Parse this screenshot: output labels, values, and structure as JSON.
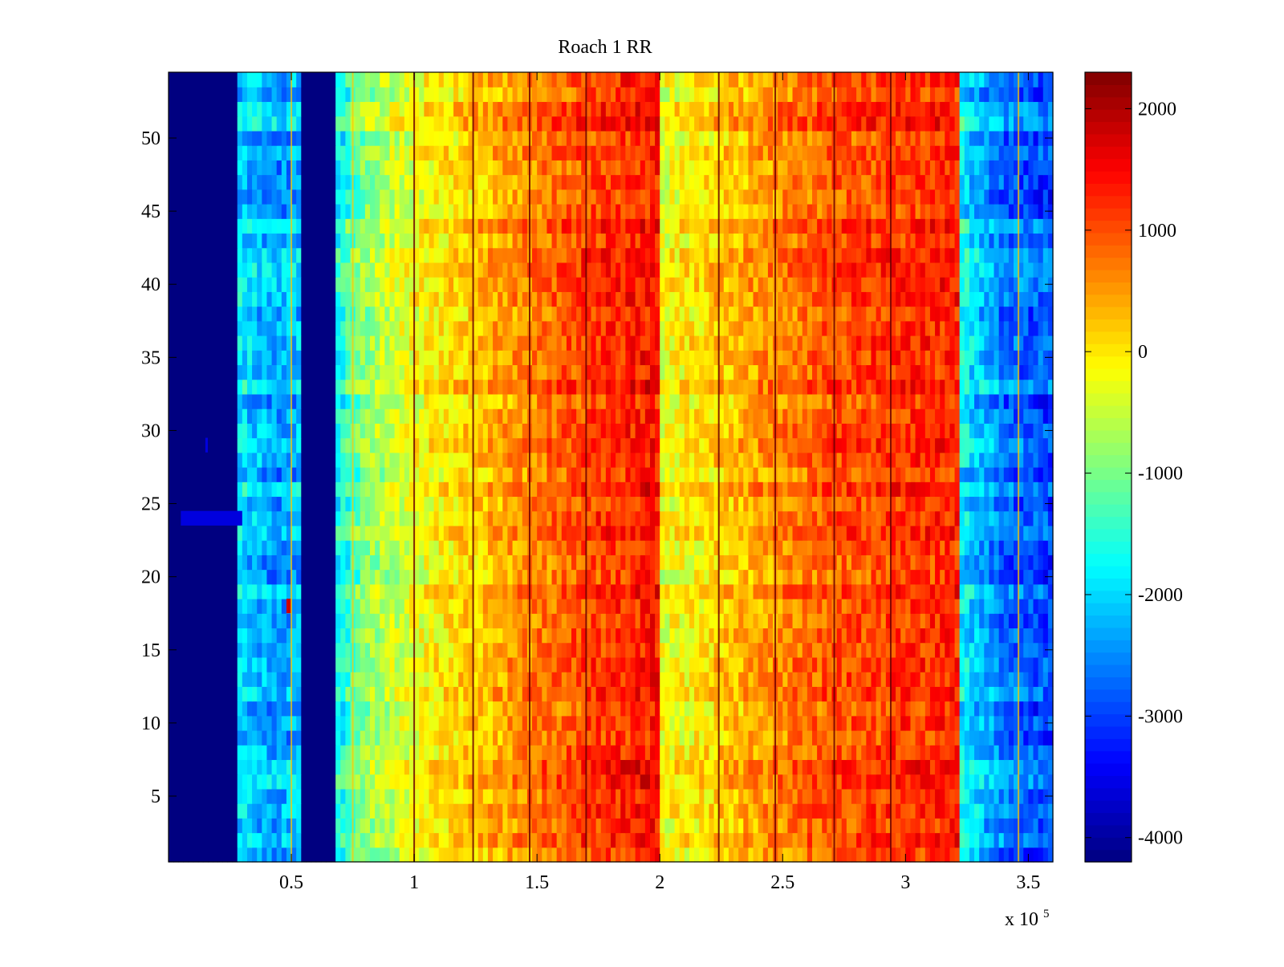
{
  "chart_data": {
    "type": "heatmap",
    "title": "Roach 1 RR",
    "xlabel": "",
    "ylabel": "",
    "x_exponent_label": {
      "base": "x 10",
      "exponent": "5"
    },
    "xlim": [
      0,
      3.6
    ],
    "ylim": [
      0.5,
      54.5
    ],
    "xticks": [
      {
        "value": 0.5,
        "label": "0.5"
      },
      {
        "value": 1,
        "label": "1"
      },
      {
        "value": 1.5,
        "label": "1.5"
      },
      {
        "value": 2,
        "label": "2"
      },
      {
        "value": 2.5,
        "label": "2.5"
      },
      {
        "value": 3,
        "label": "3"
      },
      {
        "value": 3.5,
        "label": "3.5"
      }
    ],
    "yticks": [
      {
        "value": 5,
        "label": "5"
      },
      {
        "value": 10,
        "label": "10"
      },
      {
        "value": 15,
        "label": "15"
      },
      {
        "value": 20,
        "label": "20"
      },
      {
        "value": 25,
        "label": "25"
      },
      {
        "value": 30,
        "label": "30"
      },
      {
        "value": 35,
        "label": "35"
      },
      {
        "value": 40,
        "label": "40"
      },
      {
        "value": 45,
        "label": "45"
      },
      {
        "value": 50,
        "label": "50"
      }
    ],
    "rows": 54,
    "colormap": "jet",
    "clim": [
      -4200,
      2300
    ],
    "colorbar_ticks": [
      {
        "value": 2000,
        "label": "2000"
      },
      {
        "value": 1000,
        "label": "1000"
      },
      {
        "value": 0,
        "label": "0"
      },
      {
        "value": -1000,
        "label": "-1000"
      },
      {
        "value": -2000,
        "label": "-2000"
      },
      {
        "value": -3000,
        "label": "-3000"
      },
      {
        "value": -4000,
        "label": "-4000"
      }
    ],
    "column_profile": [
      {
        "x": 0.0,
        "value": -4200
      },
      {
        "x": 0.28,
        "value": -4200
      },
      {
        "x": 0.29,
        "value": -1900
      },
      {
        "x": 0.45,
        "value": -2300
      },
      {
        "x": 0.54,
        "value": -2100
      },
      {
        "x": 0.55,
        "value": -4200
      },
      {
        "x": 0.67,
        "value": -4200
      },
      {
        "x": 0.68,
        "value": -1700
      },
      {
        "x": 0.8,
        "value": -800
      },
      {
        "x": 1.0,
        "value": -200
      },
      {
        "x": 1.24,
        "value": 250
      },
      {
        "x": 1.47,
        "value": 700
      },
      {
        "x": 1.7,
        "value": 1100
      },
      {
        "x": 1.99,
        "value": 1450
      },
      {
        "x": 2.0,
        "value": -250
      },
      {
        "x": 2.24,
        "value": 200
      },
      {
        "x": 2.47,
        "value": 650
      },
      {
        "x": 2.71,
        "value": 1000
      },
      {
        "x": 3.0,
        "value": 1200
      },
      {
        "x": 3.22,
        "value": 1300
      },
      {
        "x": 3.23,
        "value": -1700
      },
      {
        "x": 3.4,
        "value": -2600
      },
      {
        "x": 3.6,
        "value": -2900
      }
    ],
    "dark_stripes_x": [
      1.0,
      1.24,
      1.47,
      1.7,
      2.24,
      2.47,
      2.71,
      2.94
    ],
    "light_stripes_x": [
      0.5,
      0.75,
      3.46
    ],
    "anomalies": [
      {
        "row": 24,
        "x_start": 0.05,
        "x_end": 0.3,
        "value": -3600
      },
      {
        "row": 29,
        "x_start": 0.15,
        "x_end": 0.16,
        "value": -3600
      },
      {
        "row": 18,
        "x_start": 0.48,
        "x_end": 0.5,
        "value": 1800
      }
    ]
  }
}
